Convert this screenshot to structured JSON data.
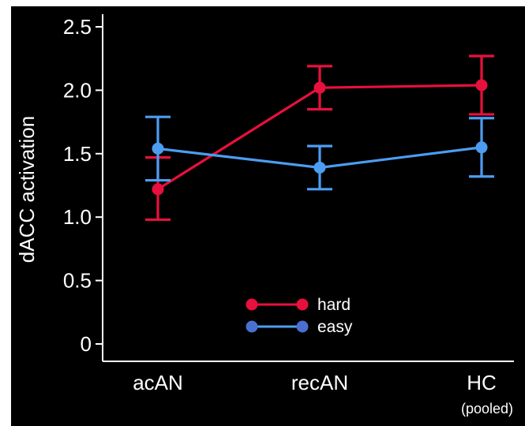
{
  "chart_data": {
    "type": "line",
    "title": "",
    "ylabel": "dACC activation",
    "xlabel": "",
    "categories": [
      "acAN",
      "recAN",
      "HC"
    ],
    "category_sublabels": [
      "",
      "",
      "(pooled)"
    ],
    "ylim": [
      0,
      2.5
    ],
    "yticks": [
      0,
      0.5,
      1.0,
      1.5,
      2.0,
      2.5
    ],
    "ytick_labels": [
      "0",
      "0.5",
      "1.0",
      "1.5",
      "2.0",
      "2.5"
    ],
    "grid": false,
    "legend_position": "bottom-center",
    "series": [
      {
        "name": "hard",
        "color": "#e8103c",
        "marker_color": "#e8103c",
        "values": [
          1.22,
          2.02,
          2.04
        ],
        "error_low": [
          0.98,
          1.85,
          1.81
        ],
        "error_high": [
          1.47,
          2.19,
          2.27
        ]
      },
      {
        "name": "easy",
        "color": "#4c9df2",
        "marker_color": "#4c9df2",
        "legend_marker_color": "#4a6fd0",
        "values": [
          1.54,
          1.39,
          1.55
        ],
        "error_low": [
          1.29,
          1.22,
          1.32
        ],
        "error_high": [
          1.79,
          1.56,
          1.78
        ]
      }
    ]
  }
}
